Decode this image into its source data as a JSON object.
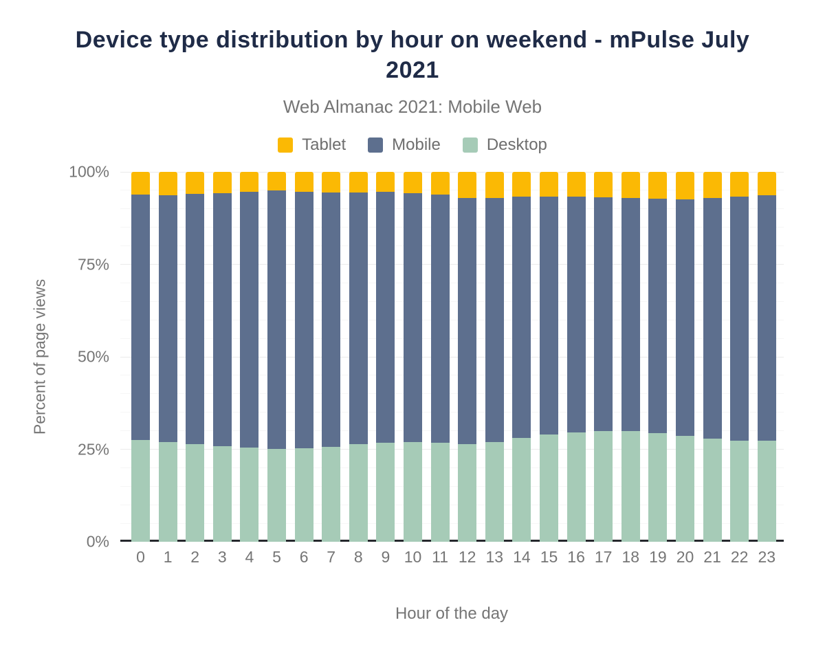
{
  "header": {
    "title": "Device type distribution by hour on weekend - mPulse July 2021",
    "subtitle": "Web Almanac 2021: Mobile Web"
  },
  "legend": {
    "items": [
      {
        "label": "Tablet",
        "color": "#FBB904"
      },
      {
        "label": "Mobile",
        "color": "#5D6F8E"
      },
      {
        "label": "Desktop",
        "color": "#A6CBB7"
      }
    ]
  },
  "chart_data": {
    "type": "bar",
    "stacked": true,
    "title": "Device type distribution by hour on weekend - mPulse July 2021",
    "subtitle": "Web Almanac 2021: Mobile Web",
    "xlabel": "Hour of the day",
    "ylabel": "Percent of page views",
    "unit": "%",
    "categories": [
      "0",
      "1",
      "2",
      "3",
      "4",
      "5",
      "6",
      "7",
      "8",
      "9",
      "10",
      "11",
      "12",
      "13",
      "14",
      "15",
      "16",
      "17",
      "18",
      "19",
      "20",
      "21",
      "22",
      "23"
    ],
    "ylim": [
      0,
      100
    ],
    "yticks": [
      0,
      25,
      50,
      75,
      100
    ],
    "grid": {
      "minor_step": 5,
      "major_step": 25
    },
    "legend_position": "top",
    "stack_order_bottom_to_top": [
      "Desktop",
      "Mobile",
      "Tablet"
    ],
    "series": [
      {
        "name": "Tablet",
        "color": "#FBB904",
        "values": [
          6.1,
          6.3,
          6.0,
          5.7,
          5.4,
          5.1,
          5.3,
          5.6,
          5.6,
          5.4,
          5.8,
          6.1,
          7.0,
          7.0,
          6.6,
          6.6,
          6.6,
          6.8,
          7.0,
          7.3,
          7.4,
          7.0,
          6.6,
          6.3
        ]
      },
      {
        "name": "Mobile",
        "color": "#5D6F8E",
        "values": [
          66.4,
          66.7,
          67.6,
          68.5,
          69.2,
          69.8,
          69.4,
          68.7,
          68.0,
          67.8,
          67.2,
          67.1,
          66.6,
          66.0,
          65.4,
          64.4,
          63.8,
          63.2,
          63.0,
          63.4,
          64.0,
          65.2,
          66.1,
          66.4
        ]
      },
      {
        "name": "Desktop",
        "color": "#A6CBB7",
        "values": [
          27.5,
          27.0,
          26.4,
          25.8,
          25.4,
          25.1,
          25.3,
          25.7,
          26.4,
          26.8,
          27.0,
          26.8,
          26.4,
          27.0,
          28.0,
          29.0,
          29.6,
          30.0,
          30.0,
          29.3,
          28.6,
          27.8,
          27.3,
          27.3
        ]
      }
    ]
  },
  "colors": {
    "background": "#FFFFFF",
    "title": "#1F2B47",
    "axis_text": "#757575",
    "baseline": "#25282D",
    "grid_major": "#EBEBEB",
    "grid_minor": "#F6F6F6"
  }
}
